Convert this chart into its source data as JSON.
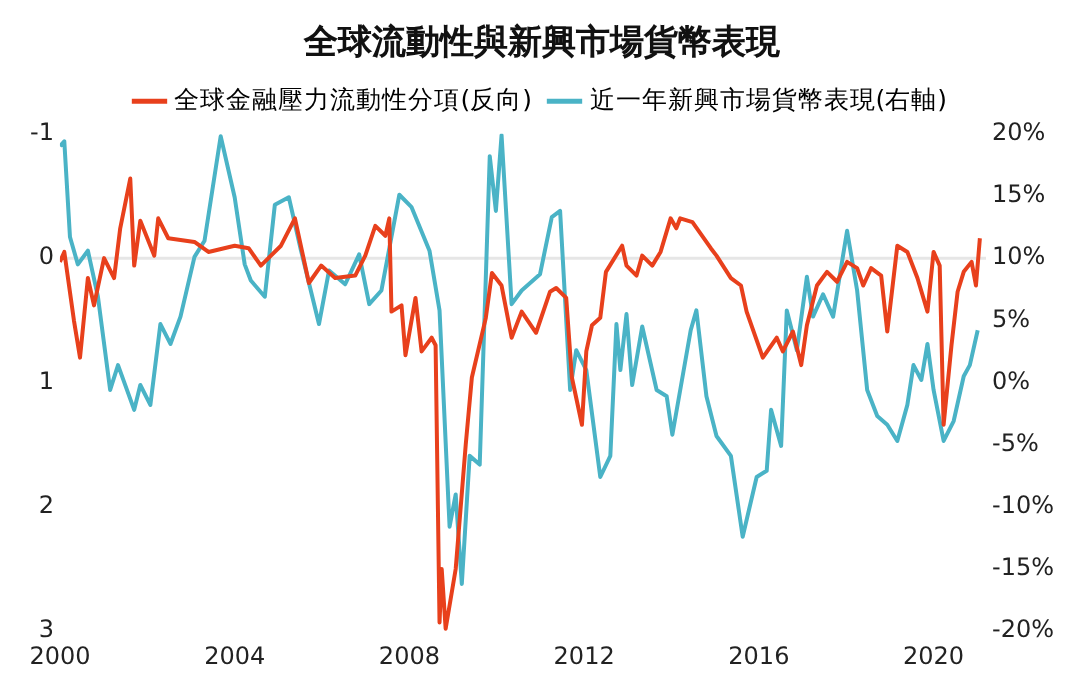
{
  "chart_data": {
    "type": "line",
    "title": "全球流動性與新興市場貨幣表現",
    "xlim": [
      2000,
      2021.2
    ],
    "xticks": [
      2000,
      2004,
      2008,
      2012,
      2016,
      2020
    ],
    "ylim": [
      3,
      -1
    ],
    "yticks": [
      -1,
      0,
      1,
      2,
      3
    ],
    "y2lim": [
      -20,
      20
    ],
    "y2ticks": [
      {
        "value": -20,
        "label": "-20%"
      },
      {
        "value": -15,
        "label": "-15%"
      },
      {
        "value": -10,
        "label": "-10%"
      },
      {
        "value": -5,
        "label": "-5%"
      },
      {
        "value": 0,
        "label": "0%"
      },
      {
        "value": 5,
        "label": "5%"
      },
      {
        "value": 10,
        "label": "10%"
      },
      {
        "value": 15,
        "label": "15%"
      },
      {
        "value": 20,
        "label": "20%"
      }
    ],
    "grid": false,
    "legend": "top",
    "marker": "none",
    "ref_lines": [
      {
        "axis": "y",
        "value": 0,
        "color": "#e6e6e6"
      }
    ],
    "series": [
      {
        "name": "全球金融壓力流動性分項(反向)",
        "color": "#e8401c",
        "x": [
          2000.0,
          2000.1,
          2000.32,
          2000.46,
          2000.64,
          2000.78,
          2001.01,
          2001.24,
          2001.38,
          2001.61,
          2001.7,
          2001.84,
          2002.16,
          2002.25,
          2002.48,
          2003.08,
          2003.4,
          2004.0,
          2004.32,
          2004.6,
          2005.06,
          2005.38,
          2005.7,
          2005.98,
          2006.3,
          2006.76,
          2006.99,
          2007.22,
          2007.45,
          2007.54,
          2007.59,
          2007.82,
          2007.91,
          2008.14,
          2008.28,
          2008.51,
          2008.6,
          2008.69,
          2008.74,
          2008.83,
          2009.06,
          2009.29,
          2009.43,
          2009.75,
          2009.89,
          2010.11,
          2010.34,
          2010.57,
          2010.9,
          2011.22,
          2011.36,
          2011.59,
          2011.72,
          2011.95,
          2012.05,
          2012.18,
          2012.37,
          2012.5,
          2012.87,
          2012.97,
          2013.2,
          2013.33,
          2013.56,
          2013.75,
          2013.98,
          2014.11,
          2014.2,
          2014.48,
          2014.9,
          2015.03,
          2015.36,
          2015.59,
          2015.72,
          2016.09,
          2016.41,
          2016.55,
          2016.78,
          2016.97,
          2017.1,
          2017.33,
          2017.56,
          2017.79,
          2018.02,
          2018.25,
          2018.39,
          2018.57,
          2018.8,
          2018.94,
          2019.17,
          2019.4,
          2019.63,
          2019.86,
          2020.0,
          2020.14,
          2020.23,
          2020.41,
          2020.55,
          2020.69,
          2020.87,
          2020.97,
          2021.06
        ],
        "values": [
          0.03,
          -0.05,
          0.5,
          0.8,
          0.16,
          0.38,
          0,
          0.16,
          -0.24,
          -0.64,
          0.06,
          -0.3,
          -0.02,
          -0.32,
          -0.16,
          -0.13,
          -0.05,
          -0.1,
          -0.08,
          0.06,
          -0.1,
          -0.32,
          0.2,
          0.06,
          0.16,
          0.14,
          -0.02,
          -0.26,
          -0.18,
          -0.32,
          0.43,
          0.38,
          0.78,
          0.32,
          0.75,
          0.64,
          0.7,
          2.93,
          2.5,
          2.98,
          2.5,
          1.5,
          0.96,
          0.48,
          0.12,
          0.22,
          0.64,
          0.43,
          0.6,
          0.27,
          0.24,
          0.32,
          0.96,
          1.34,
          0.75,
          0.54,
          0.48,
          0.11,
          -0.1,
          0.06,
          0.14,
          -0.02,
          0.06,
          -0.05,
          -0.32,
          -0.24,
          -0.32,
          -0.29,
          -0.08,
          -0.02,
          0.16,
          0.22,
          0.43,
          0.8,
          0.64,
          0.75,
          0.59,
          0.86,
          0.54,
          0.22,
          0.11,
          0.19,
          0.03,
          0.08,
          0.22,
          0.08,
          0.14,
          0.59,
          -0.1,
          -0.05,
          0.16,
          0.43,
          -0.05,
          0.06,
          1.34,
          0.7,
          0.27,
          0.11,
          0.03,
          0.22,
          -0.16
        ]
      },
      {
        "name": "近一年新興市場貨幣表現(右軸)",
        "color": "#4ab3c6",
        "axis": "y2",
        "x": [
          2000.0,
          2000.1,
          2000.23,
          2000.41,
          2000.64,
          2000.87,
          2001.15,
          2001.33,
          2001.7,
          2001.84,
          2002.07,
          2002.3,
          2002.53,
          2002.76,
          2003.08,
          2003.31,
          2003.68,
          2004.0,
          2004.23,
          2004.37,
          2004.69,
          2004.92,
          2005.24,
          2005.52,
          2005.93,
          2006.16,
          2006.53,
          2006.85,
          2007.08,
          2007.36,
          2007.77,
          2008.05,
          2008.46,
          2008.69,
          2008.92,
          2009.06,
          2009.2,
          2009.38,
          2009.61,
          2009.84,
          2009.98,
          2010.11,
          2010.34,
          2010.57,
          2010.99,
          2011.26,
          2011.45,
          2011.68,
          2011.82,
          2012.05,
          2012.37,
          2012.6,
          2012.74,
          2012.83,
          2012.97,
          2013.1,
          2013.33,
          2013.66,
          2013.89,
          2014.02,
          2014.44,
          2014.57,
          2014.8,
          2015.03,
          2015.36,
          2015.63,
          2015.95,
          2016.18,
          2016.28,
          2016.51,
          2016.64,
          2016.87,
          2017.1,
          2017.24,
          2017.47,
          2017.7,
          2018.02,
          2018.25,
          2018.48,
          2018.71,
          2018.94,
          2019.17,
          2019.4,
          2019.54,
          2019.72,
          2019.86,
          2020.0,
          2020.23,
          2020.46,
          2020.69,
          2020.83,
          2021.01
        ],
        "values": [
          19.0,
          19.4,
          11.7,
          9.5,
          10.6,
          6.9,
          -0.6,
          1.4,
          -2.2,
          -0.2,
          -1.8,
          4.7,
          3.1,
          5.3,
          10.1,
          11.4,
          19.8,
          14.9,
          9.5,
          8.2,
          6.9,
          14.3,
          14.9,
          10.6,
          4.7,
          9.0,
          7.9,
          10.3,
          6.3,
          7.4,
          15.1,
          14.1,
          10.6,
          5.8,
          -11.6,
          -9.0,
          -16.2,
          -5.9,
          -6.6,
          18.2,
          13.8,
          19.9,
          6.3,
          7.4,
          8.7,
          13.3,
          13.8,
          -0.6,
          2.6,
          1.0,
          -7.6,
          -5.9,
          4.7,
          1.0,
          5.5,
          -0.2,
          4.5,
          -0.6,
          -1.1,
          -4.2,
          4.2,
          5.8,
          -1.1,
          -4.3,
          -5.9,
          -12.4,
          -7.6,
          -7.1,
          -2.2,
          -5.1,
          5.8,
          2.6,
          8.5,
          5.3,
          7.1,
          5.3,
          12.2,
          7.4,
          -0.6,
          -2.7,
          -3.4,
          -4.7,
          -1.8,
          1.4,
          0.2,
          3.1,
          -0.6,
          -4.7,
          -3.1,
          0.5,
          1.4,
          4.2
        ]
      }
    ]
  }
}
